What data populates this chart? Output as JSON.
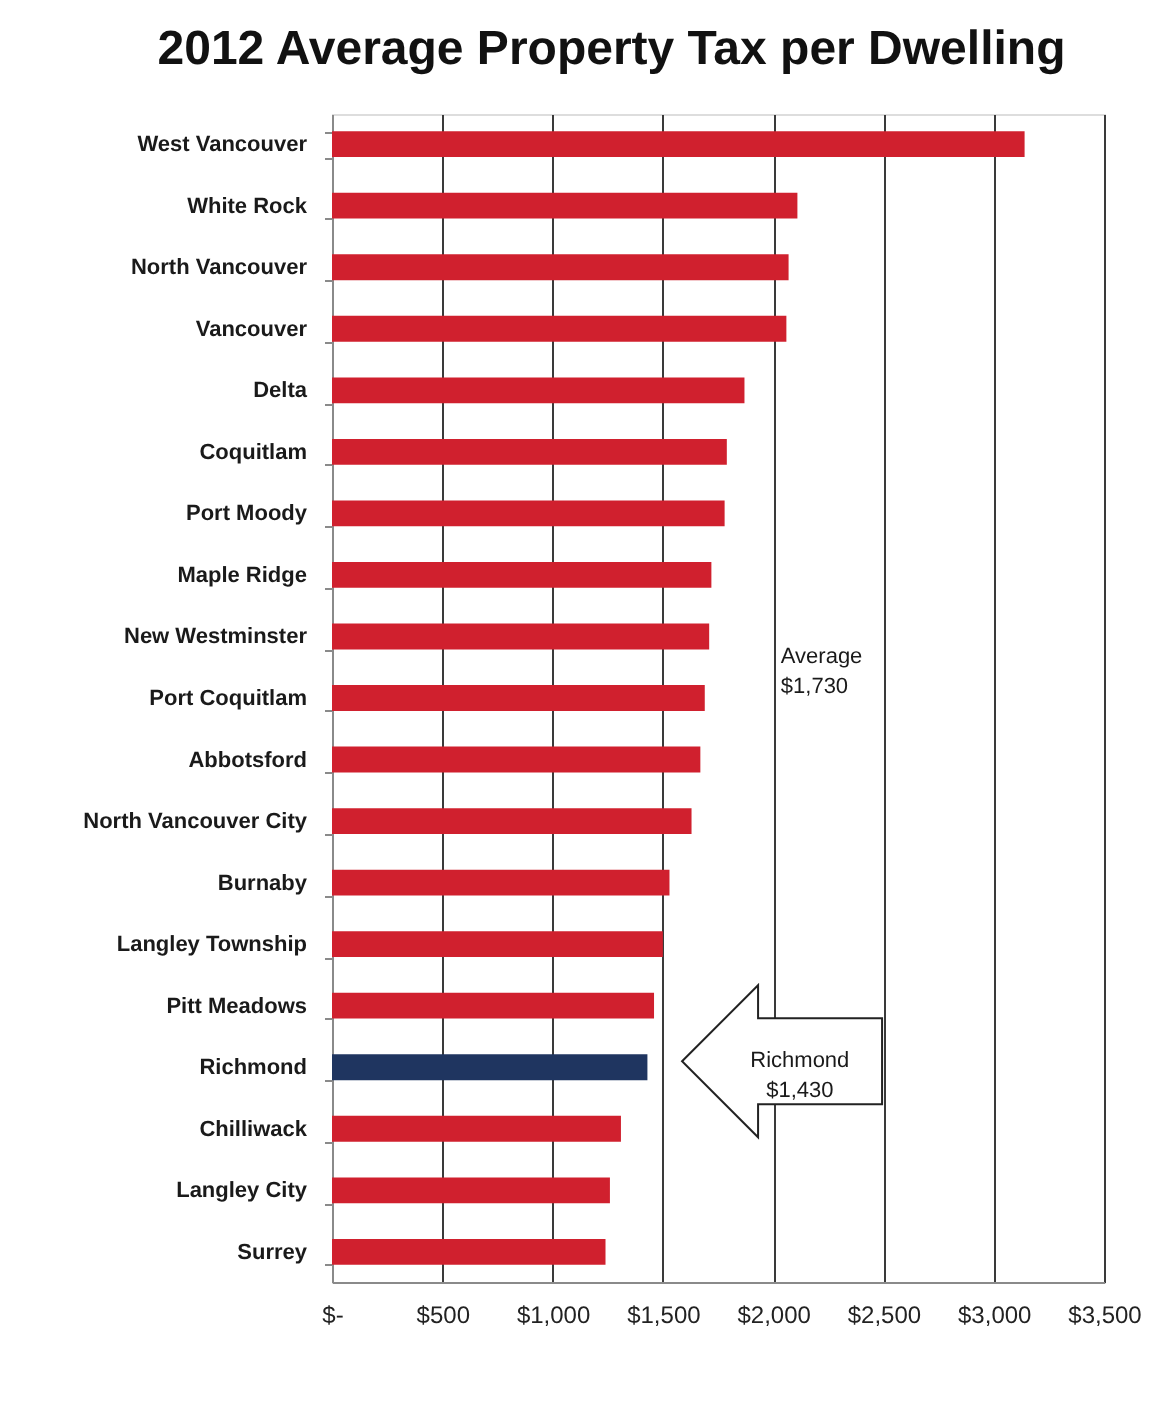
{
  "chart_data": {
    "type": "bar",
    "orientation": "horizontal",
    "title": "2012 Average Property Tax per Dwelling",
    "categories": [
      "West Vancouver",
      "White Rock",
      "North Vancouver",
      "Vancouver",
      "Delta",
      "Coquitlam",
      "Port Moody",
      "Maple Ridge",
      "New Westminster",
      "Port Coquitlam",
      "Abbotsford",
      "North Vancouver City",
      "Burnaby",
      "Langley Township",
      "Pitt Meadows",
      "Richmond",
      "Chilliwack",
      "Langley City",
      "Surrey"
    ],
    "values": [
      3140,
      2110,
      2070,
      2060,
      1870,
      1790,
      1780,
      1720,
      1710,
      1690,
      1670,
      1630,
      1530,
      1500,
      1460,
      1430,
      1310,
      1260,
      1240
    ],
    "colors": [
      "#d0202e",
      "#d0202e",
      "#d0202e",
      "#d0202e",
      "#d0202e",
      "#d0202e",
      "#d0202e",
      "#d0202e",
      "#d0202e",
      "#d0202e",
      "#d0202e",
      "#d0202e",
      "#d0202e",
      "#d0202e",
      "#d0202e",
      "#1f3560",
      "#d0202e",
      "#d0202e",
      "#d0202e"
    ],
    "xlim": [
      0,
      3500
    ],
    "xticks": [
      {
        "value": 0,
        "label": "$-"
      },
      {
        "value": 500,
        "label": "$500"
      },
      {
        "value": 1000,
        "label": "$1,000"
      },
      {
        "value": 1500,
        "label": "$1,500"
      },
      {
        "value": 2000,
        "label": "$2,000"
      },
      {
        "value": 2500,
        "label": "$2,500"
      },
      {
        "value": 3000,
        "label": "$3,000"
      },
      {
        "value": 3500,
        "label": "$3,500"
      }
    ],
    "grid": "x",
    "annotations": [
      "Average\n$1,730",
      "Richmond\n$1,430"
    ]
  }
}
